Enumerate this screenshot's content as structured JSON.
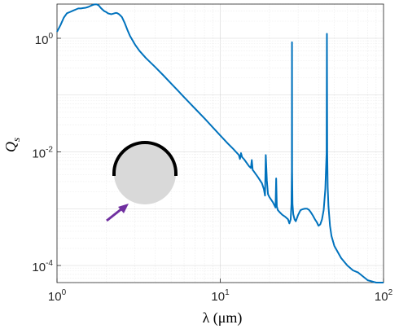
{
  "chart_data": {
    "type": "line",
    "xlabel": "λ (μm)",
    "ylabel": "Q",
    "ylabel_sub": "s",
    "xscale": "log",
    "yscale": "log",
    "xlim": [
      1,
      100
    ],
    "ylim": [
      5e-05,
      4
    ],
    "grid": true,
    "minor_grid": true,
    "x_ticks": [
      {
        "value": 1,
        "base": "10",
        "exp": "0"
      },
      {
        "value": 10,
        "base": "10",
        "exp": "1"
      },
      {
        "value": 100,
        "base": "10",
        "exp": "2"
      }
    ],
    "y_ticks": [
      {
        "value": 1,
        "base": "10",
        "exp": "0"
      },
      {
        "value": 0.01,
        "base": "10",
        "exp": "-2"
      },
      {
        "value": 0.0001,
        "base": "10",
        "exp": "-4"
      }
    ],
    "series": [
      {
        "color": "#0072bd",
        "x": [
          1.0,
          1.05,
          1.1,
          1.15,
          1.2,
          1.25,
          1.3,
          1.35,
          1.4,
          1.45,
          1.5,
          1.55,
          1.6,
          1.65,
          1.7,
          1.75,
          1.8,
          1.85,
          1.9,
          1.95,
          2.0,
          2.05,
          2.1,
          2.15,
          2.2,
          2.25,
          2.3,
          2.35,
          2.4,
          2.45,
          2.5,
          2.6,
          2.7,
          2.8,
          3.0,
          3.2,
          3.5,
          4.0,
          4.5,
          5.0,
          5.5,
          6.0,
          7.0,
          8.0,
          9.0,
          10.0,
          11.0,
          12.0,
          13.0,
          13.2,
          13.4,
          13.6,
          14.0,
          15.0,
          15.4,
          15.6,
          15.8,
          16.0,
          17.0,
          18.0,
          18.5,
          18.8,
          19.0,
          19.3,
          19.6,
          20.0,
          21.0,
          21.8,
          22.0,
          22.2,
          22.5,
          23.0,
          24.0,
          25.0,
          26.0,
          26.5,
          27.0,
          27.3,
          27.45,
          27.5,
          27.55,
          27.7,
          28.0,
          28.5,
          29.0,
          30.0,
          31.0,
          32.0,
          33.0,
          34.0,
          35.0,
          36.0,
          37.0,
          38.0,
          39.0,
          40.0,
          41.0,
          42.0,
          43.0,
          44.0,
          44.8,
          45.0,
          45.2,
          45.5,
          46.0,
          47.0,
          48.0,
          50.0,
          55.0,
          60.0,
          65.0,
          70.0,
          80.0,
          90.0,
          100.0
        ],
        "y": [
          1.3,
          1.7,
          2.3,
          2.75,
          2.9,
          3.05,
          3.2,
          3.35,
          3.35,
          3.4,
          3.45,
          3.55,
          3.7,
          3.85,
          3.95,
          3.95,
          3.8,
          3.45,
          3.2,
          3.0,
          2.9,
          2.75,
          2.7,
          2.65,
          2.7,
          2.75,
          2.8,
          2.75,
          2.65,
          2.5,
          2.35,
          1.85,
          1.4,
          1.1,
          0.78,
          0.6,
          0.45,
          0.31,
          0.22,
          0.16,
          0.12,
          0.092,
          0.058,
          0.039,
          0.027,
          0.0195,
          0.0145,
          0.0113,
          0.0088,
          0.0075,
          0.0095,
          0.0081,
          0.0074,
          0.0056,
          0.0052,
          0.0072,
          0.0048,
          0.0046,
          0.0036,
          0.0028,
          0.0022,
          0.0017,
          0.0088,
          0.0031,
          0.0018,
          0.0016,
          0.0013,
          0.00105,
          0.0034,
          0.0011,
          0.00095,
          0.00088,
          0.00078,
          0.00072,
          0.00065,
          0.00055,
          0.00065,
          0.0012,
          0.0045,
          0.85,
          0.0045,
          0.0012,
          0.0008,
          0.00065,
          0.0006,
          0.00078,
          0.00094,
          0.00098,
          0.001,
          0.001,
          0.00095,
          0.00085,
          0.00075,
          0.00065,
          0.00058,
          0.0005,
          0.00053,
          0.00065,
          0.00095,
          0.0022,
          0.0096,
          1.2,
          0.0096,
          0.0024,
          0.0011,
          0.0005,
          0.00033,
          0.00022,
          0.000135,
          0.0001,
          8.2e-05,
          7.5e-05,
          5.5e-05,
          4.8e-05,
          3.4e-05
        ]
      }
    ]
  },
  "inset": {
    "cap_color": "#000000",
    "sphere_color": "#d9d9d9",
    "arrow_color": "#7030a0"
  }
}
